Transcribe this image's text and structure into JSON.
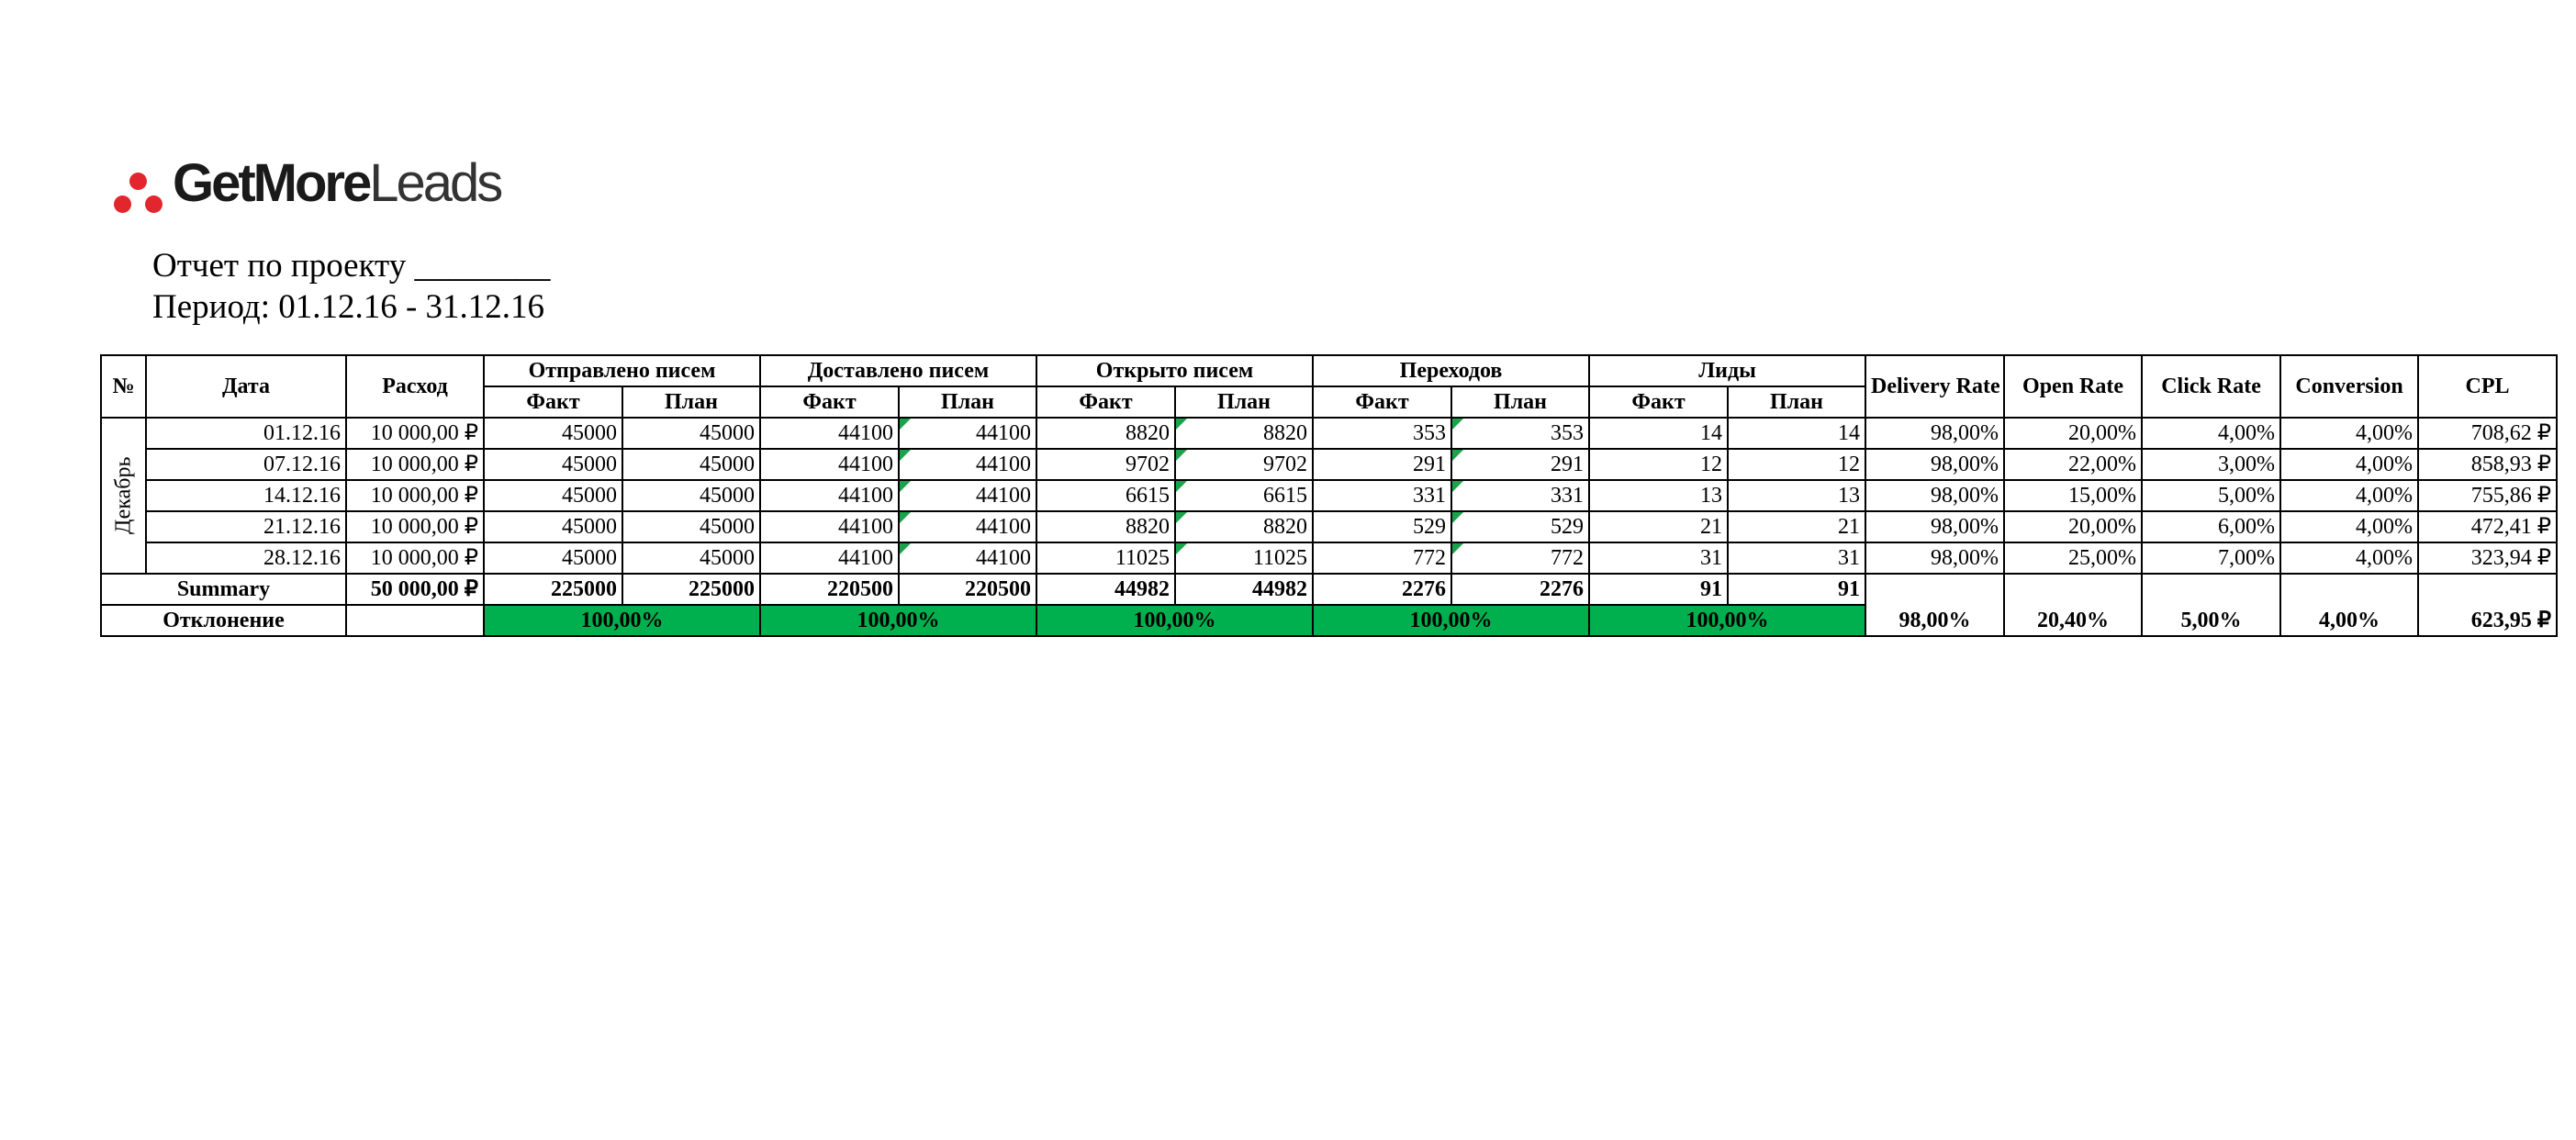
{
  "logo": {
    "part1": "GetMore",
    "part2": "Leads"
  },
  "report": {
    "title": "Отчет по проекту ________",
    "period": "Период: 01.12.16 - 31.12.16"
  },
  "table": {
    "headers": {
      "no": "№",
      "date": "Дата",
      "spend": "Расход",
      "sent": "Отправлено писем",
      "delivered": "Доставлено писем",
      "opened": "Открыто писем",
      "clicks": "Переходов",
      "leads": "Лиды",
      "delivery_rate": "Delivery Rate",
      "open_rate": "Open Rate",
      "click_rate": "Click Rate",
      "conversion": "Conversion",
      "cpl": "CPL",
      "fact": "Факт",
      "plan": "План"
    },
    "month": "Декабрь",
    "rows": [
      {
        "date": "01.12.16",
        "spend": "10 000,00 ₽",
        "sent_f": "45000",
        "sent_p": "45000",
        "del_f": "44100",
        "del_p": "44100",
        "open_f": "8820",
        "open_p": "8820",
        "click_f": "353",
        "click_p": "353",
        "lead_f": "14",
        "lead_p": "14",
        "dr": "98,00%",
        "or": "20,00%",
        "cr": "4,00%",
        "conv": "4,00%",
        "cpl": "708,62 ₽"
      },
      {
        "date": "07.12.16",
        "spend": "10 000,00 ₽",
        "sent_f": "45000",
        "sent_p": "45000",
        "del_f": "44100",
        "del_p": "44100",
        "open_f": "9702",
        "open_p": "9702",
        "click_f": "291",
        "click_p": "291",
        "lead_f": "12",
        "lead_p": "12",
        "dr": "98,00%",
        "or": "22,00%",
        "cr": "3,00%",
        "conv": "4,00%",
        "cpl": "858,93 ₽"
      },
      {
        "date": "14.12.16",
        "spend": "10 000,00 ₽",
        "sent_f": "45000",
        "sent_p": "45000",
        "del_f": "44100",
        "del_p": "44100",
        "open_f": "6615",
        "open_p": "6615",
        "click_f": "331",
        "click_p": "331",
        "lead_f": "13",
        "lead_p": "13",
        "dr": "98,00%",
        "or": "15,00%",
        "cr": "5,00%",
        "conv": "4,00%",
        "cpl": "755,86 ₽"
      },
      {
        "date": "21.12.16",
        "spend": "10 000,00 ₽",
        "sent_f": "45000",
        "sent_p": "45000",
        "del_f": "44100",
        "del_p": "44100",
        "open_f": "8820",
        "open_p": "8820",
        "click_f": "529",
        "click_p": "529",
        "lead_f": "21",
        "lead_p": "21",
        "dr": "98,00%",
        "or": "20,00%",
        "cr": "6,00%",
        "conv": "4,00%",
        "cpl": "472,41 ₽"
      },
      {
        "date": "28.12.16",
        "spend": "10 000,00 ₽",
        "sent_f": "45000",
        "sent_p": "45000",
        "del_f": "44100",
        "del_p": "44100",
        "open_f": "11025",
        "open_p": "11025",
        "click_f": "772",
        "click_p": "772",
        "lead_f": "31",
        "lead_p": "31",
        "dr": "98,00%",
        "or": "25,00%",
        "cr": "7,00%",
        "conv": "4,00%",
        "cpl": "323,94 ₽"
      }
    ],
    "summary": {
      "label": "Summary",
      "spend": "50 000,00 ₽",
      "sent_f": "225000",
      "sent_p": "225000",
      "del_f": "220500",
      "del_p": "220500",
      "open_f": "44982",
      "open_p": "44982",
      "click_f": "2276",
      "click_p": "2276",
      "lead_f": "91",
      "lead_p": "91"
    },
    "deviation": {
      "label": "Отклонение",
      "sent": "100,00%",
      "delivered": "100,00%",
      "opened": "100,00%",
      "clicks": "100,00%",
      "leads": "100,00%",
      "dr": "98,00%",
      "or": "20,40%",
      "cr": "5,00%",
      "conv": "4,00%",
      "cpl": "623,95 ₽"
    },
    "colors": {
      "highlight": "#00b04e",
      "corner_flag": "#1aa34a",
      "logo_dots": "#e3262d"
    }
  }
}
